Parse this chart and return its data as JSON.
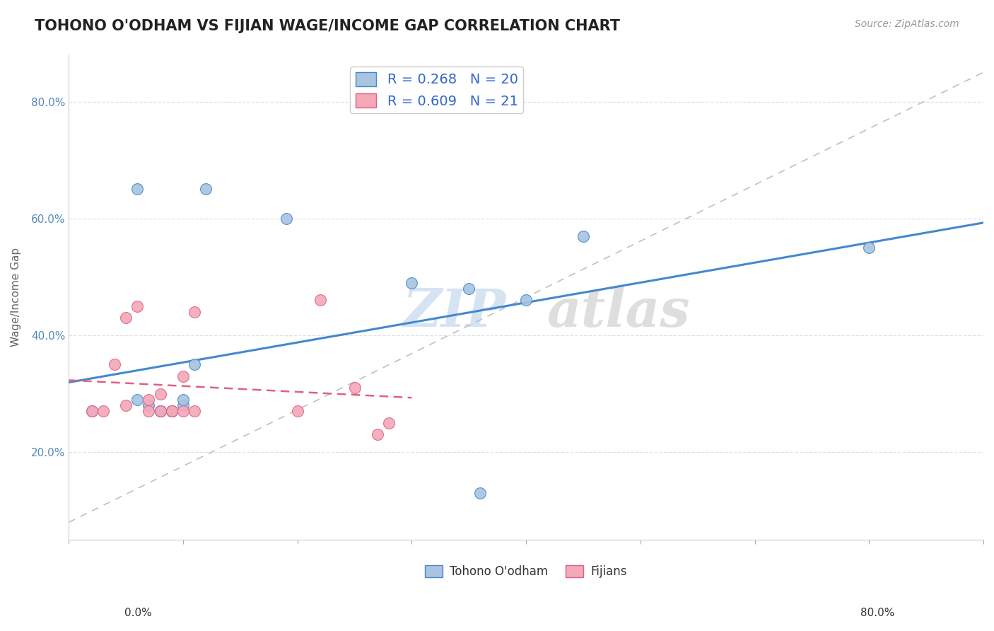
{
  "title": "TOHONO O'ODHAM VS FIJIAN WAGE/INCOME GAP CORRELATION CHART",
  "source": "Source: ZipAtlas.com",
  "ylabel": "Wage/Income Gap",
  "legend_label1": "Tohono O'odham",
  "legend_label2": "Fijians",
  "R1": 0.268,
  "N1": 20,
  "R2": 0.609,
  "N2": 21,
  "blue_color": "#a8c4e0",
  "pink_color": "#f4a8b8",
  "trend_blue": "#4488cc",
  "trend_pink": "#e06080",
  "ref_line_color": "#c0c0c0",
  "xlim": [
    0.0,
    0.8
  ],
  "ylim": [
    0.05,
    0.88
  ],
  "blue_points_x": [
    0.02,
    0.06,
    0.06,
    0.07,
    0.08,
    0.08,
    0.08,
    0.09,
    0.09,
    0.1,
    0.1,
    0.11,
    0.12,
    0.19,
    0.3,
    0.35,
    0.36,
    0.4,
    0.45,
    0.7
  ],
  "blue_points_y": [
    0.27,
    0.29,
    0.65,
    0.28,
    0.27,
    0.27,
    0.27,
    0.27,
    0.27,
    0.28,
    0.29,
    0.35,
    0.65,
    0.6,
    0.49,
    0.48,
    0.13,
    0.46,
    0.57,
    0.55
  ],
  "pink_points_x": [
    0.02,
    0.03,
    0.04,
    0.05,
    0.05,
    0.06,
    0.07,
    0.07,
    0.08,
    0.08,
    0.09,
    0.09,
    0.1,
    0.1,
    0.11,
    0.11,
    0.2,
    0.22,
    0.25,
    0.27,
    0.28
  ],
  "pink_points_y": [
    0.27,
    0.27,
    0.35,
    0.28,
    0.43,
    0.45,
    0.27,
    0.29,
    0.3,
    0.27,
    0.27,
    0.27,
    0.33,
    0.27,
    0.27,
    0.44,
    0.27,
    0.46,
    0.31,
    0.23,
    0.25
  ],
  "watermark_zip": "ZIP",
  "watermark_atlas": "atlas",
  "background_color": "#ffffff",
  "grid_color": "#e0e0e0",
  "yticks": [
    0.2,
    0.4,
    0.6,
    0.8
  ]
}
